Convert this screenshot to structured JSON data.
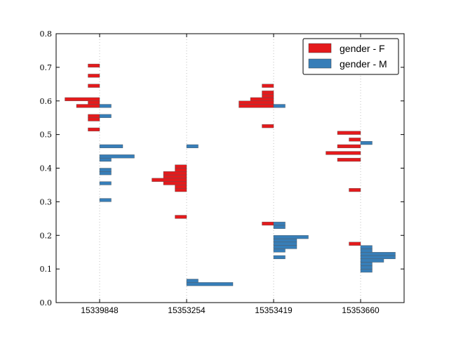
{
  "chart_data": {
    "type": "bar",
    "orientation": "horizontal-split-histogram",
    "title": "",
    "xlabel": "",
    "ylabel": "",
    "ylim": [
      0.0,
      0.8
    ],
    "yticks": [
      "0.0",
      "0.1",
      "0.2",
      "0.3",
      "0.4",
      "0.5",
      "0.6",
      "0.7",
      "0.8"
    ],
    "categories": [
      "15339848",
      "15353254",
      "15353419",
      "15353660"
    ],
    "grid": "vertical dotted lines at categories",
    "legend": {
      "position": "top-right"
    },
    "bin_height": 0.01,
    "series": [
      {
        "name": "gender - F",
        "color": "#e41a1c",
        "side": "left",
        "groups": [
          [
            [
              0.515,
              1
            ],
            [
              0.545,
              1
            ],
            [
              0.555,
              1
            ],
            [
              0.585,
              2
            ],
            [
              0.595,
              1
            ],
            [
              0.605,
              3
            ],
            [
              0.645,
              1
            ],
            [
              0.675,
              1
            ],
            [
              0.705,
              1
            ]
          ],
          [
            [
              0.255,
              1
            ],
            [
              0.335,
              1
            ],
            [
              0.345,
              1
            ],
            [
              0.355,
              2
            ],
            [
              0.365,
              3
            ],
            [
              0.375,
              2
            ],
            [
              0.385,
              2
            ],
            [
              0.395,
              1
            ],
            [
              0.405,
              1
            ]
          ],
          [
            [
              0.235,
              1
            ],
            [
              0.525,
              1
            ],
            [
              0.585,
              3
            ],
            [
              0.595,
              3
            ],
            [
              0.605,
              2
            ],
            [
              0.615,
              1
            ],
            [
              0.625,
              1
            ],
            [
              0.645,
              1
            ]
          ],
          [
            [
              0.175,
              1
            ],
            [
              0.335,
              1
            ],
            [
              0.425,
              2
            ],
            [
              0.445,
              3
            ],
            [
              0.465,
              2
            ],
            [
              0.485,
              1
            ],
            [
              0.505,
              2
            ]
          ]
        ]
      },
      {
        "name": "gender - M",
        "color": "#377eb8",
        "side": "right",
        "groups": [
          [
            [
              0.305,
              1
            ],
            [
              0.355,
              1
            ],
            [
              0.385,
              1
            ],
            [
              0.395,
              1
            ],
            [
              0.425,
              1
            ],
            [
              0.435,
              3
            ],
            [
              0.465,
              2
            ],
            [
              0.555,
              1
            ],
            [
              0.585,
              1
            ]
          ],
          [
            [
              0.055,
              4
            ],
            [
              0.065,
              1
            ],
            [
              0.465,
              1
            ]
          ],
          [
            [
              0.135,
              1
            ],
            [
              0.155,
              1
            ],
            [
              0.165,
              2
            ],
            [
              0.175,
              2
            ],
            [
              0.185,
              2
            ],
            [
              0.195,
              3
            ],
            [
              0.225,
              1
            ],
            [
              0.235,
              1
            ],
            [
              0.585,
              1
            ]
          ],
          [
            [
              0.095,
              1
            ],
            [
              0.105,
              1
            ],
            [
              0.115,
              1
            ],
            [
              0.125,
              2
            ],
            [
              0.135,
              3
            ],
            [
              0.145,
              3
            ],
            [
              0.155,
              1
            ],
            [
              0.165,
              1
            ],
            [
              0.475,
              1
            ]
          ]
        ]
      }
    ]
  }
}
